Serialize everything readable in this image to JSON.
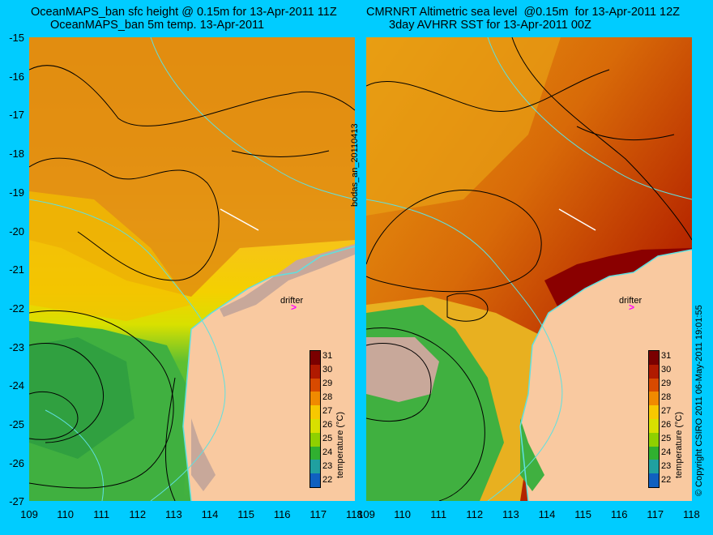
{
  "left_panel": {
    "title_line1": "OceanMAPS_ban sfc height @ 0.15m for 13-Apr-2011 11Z",
    "title_line2": "OceanMAPS_ban 5m temp. 13-Apr-2011"
  },
  "right_panel": {
    "title_line1": "CMRNRT Altimetric sea level  @0.15m  for 13-Apr-2011 12Z",
    "title_line2": "3day AVHRR SST for 13-Apr-2011 00Z"
  },
  "y_ticks": [
    "-15",
    "-16",
    "-17",
    "-18",
    "-19",
    "-20",
    "-21",
    "-22",
    "-23",
    "-24",
    "-25",
    "-26",
    "-27"
  ],
  "x_ticks": [
    "109",
    "110",
    "111",
    "112",
    "113",
    "114",
    "115",
    "116",
    "117",
    "118"
  ],
  "center_label": "bodas_an_20110413",
  "copyright": "© Copyright CSIRO 2011  06-May-2011 19:01:55",
  "drifter_label": "drifter",
  "drifter_marker": ">",
  "colorbar": {
    "title": "temperature (°C)",
    "ticks": [
      "31",
      "30",
      "29",
      "28",
      "27",
      "26",
      "25",
      "24",
      "23",
      "22"
    ],
    "colors": [
      "#7a0000",
      "#b01a00",
      "#d84a00",
      "#f08a00",
      "#f7c800",
      "#d8e000",
      "#8fd000",
      "#30b030",
      "#20a0a0",
      "#1060c0"
    ]
  },
  "map_colors": {
    "land": "#f9c9a0",
    "reef": "#c8a89a",
    "coastline": "#5fe0e0",
    "contour": "#000000",
    "track": "#ffffff"
  }
}
